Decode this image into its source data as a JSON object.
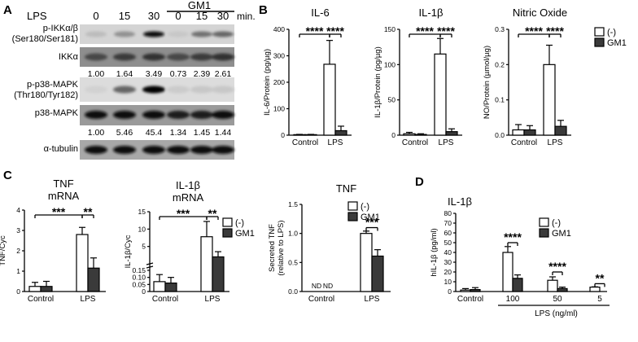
{
  "panels": {
    "A": {
      "letter": "A",
      "header": {
        "lps": "LPS",
        "gm1": "GM1",
        "unit": "min.",
        "lanes": [
          "0",
          "15",
          "30",
          "0",
          "15",
          "30"
        ]
      },
      "blots": [
        {
          "label": "p-IKKα/β",
          "label2": "(Ser180/Ser181)"
        },
        {
          "label": "IKKα"
        },
        {
          "label": "p-p38-MAPK",
          "label2": "(Thr180/Tyr182)"
        },
        {
          "label": "p38-MAPK"
        },
        {
          "label": "α-tubulin"
        }
      ],
      "quant_ikk": [
        "1.00",
        "1.64",
        "3.49",
        "0.73",
        "2.39",
        "2.61"
      ],
      "quant_p38": [
        "1.00",
        "5.46",
        "45.4",
        "1.34",
        "1.45",
        "1.44"
      ]
    },
    "B": {
      "letter": "B"
    },
    "C": {
      "letter": "C"
    },
    "D": {
      "letter": "D"
    }
  },
  "legend": {
    "neg": "(-)",
    "gm1": "GM1"
  },
  "colors": {
    "neg": "#ffffff",
    "gm1": "#3a3a3a",
    "axis": "#000000"
  },
  "chart_data": [
    {
      "id": "il6",
      "type": "bar",
      "title": "IL-6",
      "ylabel": "IL-6/Protein (pg/µg)",
      "categories": [
        "Control",
        "LPS"
      ],
      "ylim": [
        0,
        400
      ],
      "yticks": [
        "0",
        "100",
        "200",
        "300",
        "400"
      ],
      "series": [
        {
          "name": "(-)",
          "values": [
            2,
            268
          ],
          "errors": [
            1,
            90
          ]
        },
        {
          "name": "GM1",
          "values": [
            2,
            17
          ],
          "errors": [
            1,
            17
          ]
        }
      ],
      "sig": [
        "****",
        "****"
      ]
    },
    {
      "id": "il1b_b",
      "type": "bar",
      "title": "IL-1β",
      "ylabel": "IL-1β/Protein (pg/µg)",
      "categories": [
        "Control",
        "LPS"
      ],
      "ylim": [
        0,
        150
      ],
      "yticks": [
        "0",
        "50",
        "100",
        "150"
      ],
      "series": [
        {
          "name": "(-)",
          "values": [
            2,
            115
          ],
          "errors": [
            2,
            22
          ]
        },
        {
          "name": "GM1",
          "values": [
            1,
            5
          ],
          "errors": [
            1,
            4
          ]
        }
      ],
      "sig": [
        "****",
        "****"
      ]
    },
    {
      "id": "no",
      "type": "bar",
      "title": "Nitric Oxide",
      "ylabel": "NO/Protein (µmol/µg)",
      "categories": [
        "Control",
        "LPS"
      ],
      "ylim": [
        0,
        0.3
      ],
      "yticks": [
        "0.0",
        "0.1",
        "0.2",
        "0.3"
      ],
      "series": [
        {
          "name": "(-)",
          "values": [
            0.015,
            0.2
          ],
          "errors": [
            0.015,
            0.055
          ]
        },
        {
          "name": "GM1",
          "values": [
            0.015,
            0.025
          ],
          "errors": [
            0.012,
            0.017
          ]
        }
      ],
      "sig": [
        "****",
        "****"
      ]
    },
    {
      "id": "tnf_mrna",
      "type": "bar",
      "title": "TNF",
      "title2": "mRNA",
      "ylabel": "TNF/Cyc",
      "categories": [
        "Control",
        "LPS"
      ],
      "ylim": [
        0,
        4
      ],
      "yticks": [
        "0",
        "1",
        "2",
        "3",
        "4"
      ],
      "series": [
        {
          "name": "(-)",
          "values": [
            0.25,
            2.8
          ],
          "errors": [
            0.2,
            0.35
          ]
        },
        {
          "name": "GM1",
          "values": [
            0.25,
            1.15
          ],
          "errors": [
            0.25,
            0.5
          ]
        }
      ],
      "sig": [
        "***",
        "**"
      ]
    },
    {
      "id": "il1b_mrna",
      "type": "bar",
      "title": "IL-1β",
      "title2": "mRNA",
      "ylabel": "IL-1β/Cyc",
      "categories": [
        "Control",
        "LPS"
      ],
      "ylim": [
        0,
        15
      ],
      "yticks": [
        "0",
        "0.05",
        "0.10",
        "0.15",
        "5",
        "10",
        "15"
      ],
      "series": [
        {
          "name": "(-)",
          "values": [
            0.07,
            7.8
          ],
          "errors": [
            0.05,
            4.4
          ]
        },
        {
          "name": "GM1",
          "values": [
            0.06,
            2
          ],
          "errors": [
            0.04,
            1.5
          ]
        }
      ],
      "sig": [
        "***",
        "**"
      ]
    },
    {
      "id": "tnf_sec",
      "type": "bar",
      "title": "TNF",
      "ylabel": "Secreted TNF",
      "ylabel2": "(relative to LPS)",
      "categories": [
        "Control",
        "LPS"
      ],
      "ylim": [
        0,
        1.5
      ],
      "yticks": [
        "0.0",
        "0.5",
        "1.0",
        "1.5"
      ],
      "series": [
        {
          "name": "(-)",
          "values": [
            null,
            1.0
          ],
          "errors": [
            0,
            0.04
          ]
        },
        {
          "name": "GM1",
          "values": [
            null,
            0.61
          ],
          "errors": [
            0,
            0.11
          ]
        }
      ],
      "nd": [
        "ND",
        "ND"
      ],
      "sig": [
        "***"
      ]
    },
    {
      "id": "hil1b",
      "type": "bar",
      "title": "IL-1β",
      "ylabel": "hIL-1β (pg/ml)",
      "xlabel": "LPS (ng/ml)",
      "categories": [
        "Control",
        "100",
        "50",
        "5"
      ],
      "ylim": [
        0,
        80
      ],
      "yticks": [
        "0",
        "10",
        "20",
        "30",
        "40",
        "50",
        "60",
        "70",
        "80"
      ],
      "series": [
        {
          "name": "(-)",
          "values": [
            1.5,
            40,
            11.5,
            4.5
          ],
          "errors": [
            1.5,
            6,
            3.5,
            0.3
          ]
        },
        {
          "name": "GM1",
          "values": [
            2,
            13.5,
            3,
            0
          ],
          "errors": [
            2,
            3.5,
            1.5,
            0
          ]
        }
      ],
      "sig": [
        "****",
        "****",
        "**"
      ]
    }
  ]
}
